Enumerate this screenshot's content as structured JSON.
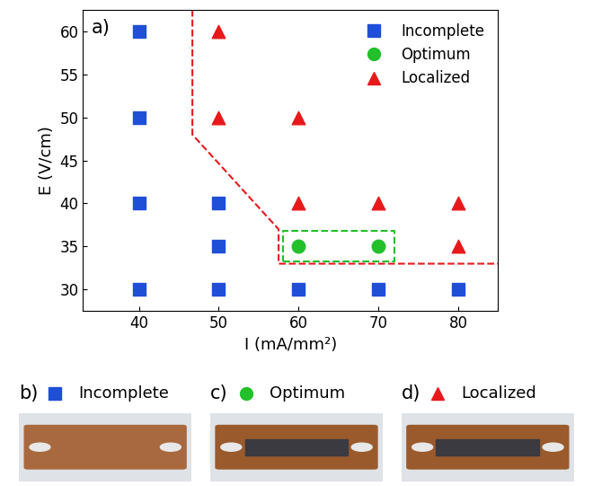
{
  "chart_data": {
    "type": "scatter",
    "panel_label": "a)",
    "x_label": "I (mA/mm²)",
    "y_label": "E (V/cm)",
    "xlim": [
      33,
      85
    ],
    "xticks": [
      40,
      50,
      60,
      70,
      80
    ],
    "ylim": [
      27.5,
      62.5
    ],
    "yticks": [
      30,
      35,
      40,
      45,
      50,
      55,
      60
    ],
    "legend": "upper right",
    "series": [
      {
        "name": "Incomplete",
        "color": "#1f4fd6",
        "marker": "square",
        "x": [
          40,
          40,
          40,
          40,
          50,
          50,
          50,
          60,
          70,
          80
        ],
        "values": [
          60,
          50,
          40,
          30,
          40,
          35,
          30,
          30,
          30,
          30
        ]
      },
      {
        "name": "Optimum",
        "color": "#22c02a",
        "marker": "circle",
        "x": [
          60,
          70
        ],
        "values": [
          35,
          35
        ]
      },
      {
        "name": "Localized",
        "color": "#e8191b",
        "marker": "triangle",
        "x": [
          50,
          50,
          60,
          60,
          70,
          80,
          80
        ],
        "values": [
          60,
          50,
          50,
          40,
          40,
          40,
          35
        ]
      }
    ],
    "boundary": {
      "color": "#e8191b",
      "line_style": "dashed",
      "x": [
        46.7,
        46.7,
        57.5,
        57.5,
        85
      ],
      "values": [
        62.5,
        48,
        37,
        33,
        33
      ]
    },
    "optimum_box": {
      "color": "#22c02a",
      "line_style": "dashed",
      "x": [
        58,
        72,
        72,
        58,
        58
      ],
      "values": [
        33.3,
        33.3,
        36.8,
        36.8,
        33.3
      ]
    },
    "photos": [
      {
        "label": "b)",
        "series": "Incomplete"
      },
      {
        "label": "c)",
        "series": "Optimum"
      },
      {
        "label": "d)",
        "series": "Localized"
      }
    ]
  }
}
